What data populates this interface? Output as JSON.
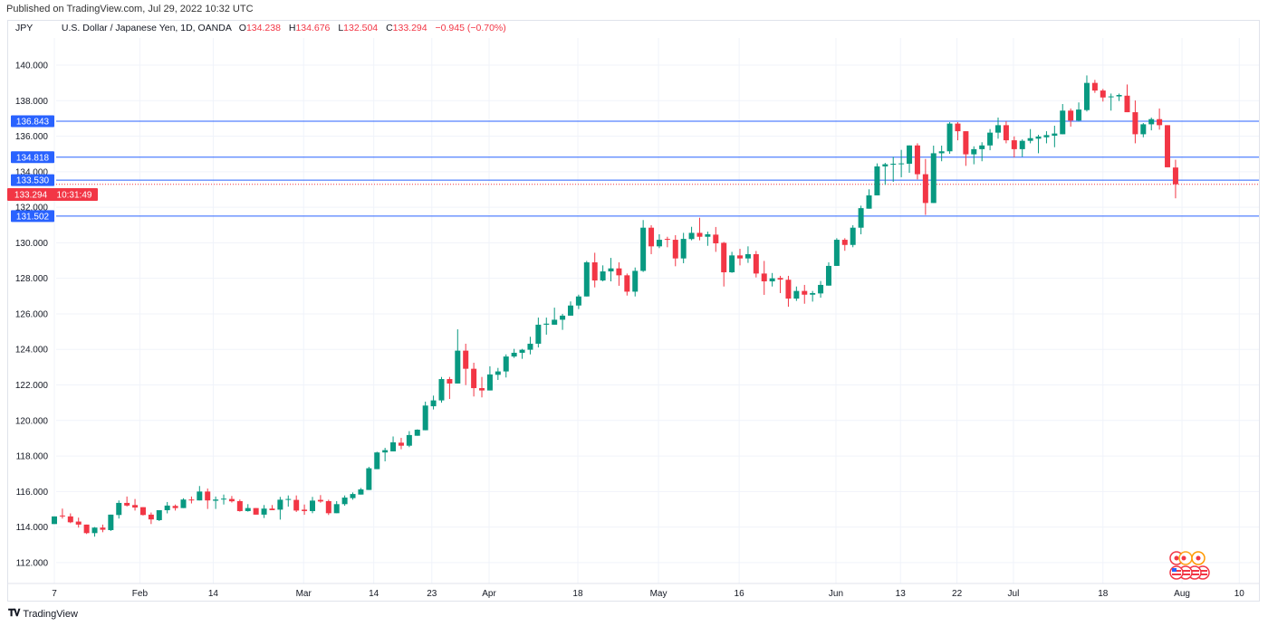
{
  "header": {
    "published": "Published on TradingView.com, Jul 29, 2022 10:32 UTC"
  },
  "legend": {
    "symbol": "JPY",
    "description": "U.S. Dollar / Japanese Yen, 1D, OANDA",
    "open_key": "O",
    "open": "134.238",
    "high_key": "H",
    "high": "134.676",
    "low_key": "L",
    "low": "132.504",
    "close_key": "C",
    "close": "133.294",
    "change": "−0.945 (−0.70%)"
  },
  "footer": {
    "brand": "TradingView",
    "logo": "17"
  },
  "colors": {
    "up": "#089981",
    "down": "#f23645",
    "line": "#2962ff",
    "grid": "#f0f3fa"
  },
  "chart_data": {
    "type": "candlestick",
    "title": "U.S. Dollar / Japanese Yen, 1D, OANDA",
    "first_date": "2022-01-17",
    "last_date": "2022-07-29",
    "ylim": [
      111,
      141
    ],
    "y_ticks": [
      "112.000",
      "114.000",
      "116.000",
      "118.000",
      "120.000",
      "122.000",
      "124.000",
      "126.000",
      "128.000",
      "130.000",
      "132.000",
      "134.000",
      "136.000",
      "138.000",
      "140.000"
    ],
    "x_ticks": [
      {
        "label": "7",
        "index": 0
      },
      {
        "label": "Feb",
        "index": 10.6
      },
      {
        "label": "14",
        "index": 19.7
      },
      {
        "label": "Mar",
        "index": 30.9
      },
      {
        "label": "14",
        "index": 39.6
      },
      {
        "label": "23",
        "index": 46.8
      },
      {
        "label": "Apr",
        "index": 53.9
      },
      {
        "label": "18",
        "index": 64.9
      },
      {
        "label": "May",
        "index": 74.9
      },
      {
        "label": "16",
        "index": 84.9
      },
      {
        "label": "Jun",
        "index": 96.9
      },
      {
        "label": "13",
        "index": 104.9
      },
      {
        "label": "22",
        "index": 111.9
      },
      {
        "label": "Jul",
        "index": 118.9
      },
      {
        "label": "18",
        "index": 130
      },
      {
        "label": "Aug",
        "index": 139.8
      },
      {
        "label": "10",
        "index": 146.9
      }
    ],
    "horizontal_lines": [
      "136.843",
      "134.818",
      "133.530",
      "131.502"
    ],
    "current_price": {
      "value": "133.294",
      "countdown": "10:31:49"
    },
    "candles": [
      [
        114.17,
        114.6,
        114.17,
        114.6
      ],
      [
        114.65,
        115.04,
        114.48,
        114.6
      ],
      [
        114.6,
        114.77,
        114.22,
        114.27
      ],
      [
        114.31,
        114.53,
        113.97,
        114.14
      ],
      [
        114.14,
        114.14,
        113.61,
        113.66
      ],
      [
        113.66,
        114.0,
        113.46,
        113.97
      ],
      [
        113.97,
        114.14,
        113.71,
        113.85
      ],
      [
        113.83,
        114.7,
        113.78,
        114.7
      ],
      [
        114.68,
        115.5,
        114.48,
        115.36
      ],
      [
        115.36,
        115.72,
        115.16,
        115.21
      ],
      [
        115.24,
        115.58,
        114.93,
        115.1
      ],
      [
        115.12,
        115.12,
        114.65,
        114.68
      ],
      [
        114.7,
        114.82,
        114.17,
        114.43
      ],
      [
        114.39,
        114.95,
        114.34,
        114.95
      ],
      [
        114.95,
        115.41,
        114.77,
        115.21
      ],
      [
        115.19,
        115.27,
        114.93,
        115.07
      ],
      [
        115.07,
        115.62,
        115.07,
        115.55
      ],
      [
        115.55,
        115.72,
        115.33,
        115.5
      ],
      [
        115.5,
        116.31,
        115.5,
        116.0
      ],
      [
        116.0,
        116.17,
        115.02,
        115.5
      ],
      [
        115.48,
        115.72,
        115.02,
        115.55
      ],
      [
        115.55,
        115.83,
        115.27,
        115.6
      ],
      [
        115.58,
        115.75,
        115.38,
        115.45
      ],
      [
        115.46,
        115.55,
        114.87,
        114.9
      ],
      [
        114.9,
        115.29,
        114.87,
        115.07
      ],
      [
        115.07,
        115.07,
        114.7,
        114.7
      ],
      [
        114.7,
        115.24,
        114.51,
        115.04
      ],
      [
        115.04,
        115.24,
        114.95,
        114.95
      ],
      [
        114.98,
        115.7,
        114.42,
        115.54
      ],
      [
        115.53,
        115.78,
        115.15,
        115.58
      ],
      [
        115.53,
        115.78,
        114.85,
        114.93
      ],
      [
        114.98,
        115.27,
        114.69,
        114.9
      ],
      [
        114.9,
        115.7,
        114.78,
        115.49
      ],
      [
        115.53,
        115.8,
        115.37,
        115.44
      ],
      [
        115.46,
        115.54,
        114.68,
        114.78
      ],
      [
        114.78,
        115.46,
        114.78,
        115.29
      ],
      [
        115.29,
        115.78,
        115.2,
        115.66
      ],
      [
        115.63,
        115.95,
        115.54,
        115.86
      ],
      [
        115.83,
        116.2,
        115.83,
        116.12
      ],
      [
        116.09,
        117.39,
        116.09,
        117.31
      ],
      [
        117.26,
        118.24,
        117.26,
        118.2
      ],
      [
        118.2,
        118.46,
        117.7,
        118.33
      ],
      [
        118.26,
        119.1,
        118.26,
        118.77
      ],
      [
        118.75,
        119.02,
        118.38,
        118.58
      ],
      [
        118.58,
        119.4,
        118.5,
        119.18
      ],
      [
        119.14,
        119.5,
        119.14,
        119.48
      ],
      [
        119.45,
        121.06,
        119.45,
        120.84
      ],
      [
        120.8,
        121.4,
        120.62,
        121.13
      ],
      [
        121.13,
        122.45,
        121.0,
        122.33
      ],
      [
        122.33,
        122.45,
        121.21,
        122.08
      ],
      [
        122.08,
        125.13,
        122.08,
        123.93
      ],
      [
        123.93,
        124.32,
        121.99,
        122.91
      ],
      [
        122.91,
        123.25,
        121.35,
        121.82
      ],
      [
        121.82,
        122.45,
        121.3,
        121.69
      ],
      [
        121.69,
        123.05,
        121.69,
        122.59
      ],
      [
        122.57,
        122.96,
        122.28,
        122.76
      ],
      [
        122.76,
        123.72,
        122.42,
        123.6
      ],
      [
        123.6,
        124.03,
        123.52,
        123.81
      ],
      [
        123.81,
        124.03,
        123.47,
        123.98
      ],
      [
        123.98,
        124.71,
        123.72,
        124.32
      ],
      [
        124.32,
        125.79,
        124.11,
        125.39
      ],
      [
        125.39,
        125.79,
        124.83,
        125.45
      ],
      [
        125.39,
        126.35,
        125.39,
        125.67
      ],
      [
        125.67,
        126.0,
        125.1,
        125.9
      ],
      [
        125.9,
        126.7,
        125.9,
        126.47
      ],
      [
        126.47,
        127.08,
        126.27,
        126.98
      ],
      [
        126.98,
        128.98,
        126.98,
        128.9
      ],
      [
        128.9,
        129.44,
        127.49,
        127.88
      ],
      [
        127.88,
        128.73,
        127.83,
        128.39
      ],
      [
        128.39,
        129.15,
        127.83,
        128.56
      ],
      [
        128.56,
        128.9,
        127.58,
        128.17
      ],
      [
        128.17,
        128.27,
        127.03,
        127.25
      ],
      [
        127.25,
        128.61,
        126.98,
        128.42
      ],
      [
        128.42,
        131.28,
        128.36,
        130.85
      ],
      [
        130.85,
        130.99,
        129.36,
        129.8
      ],
      [
        129.8,
        130.48,
        129.7,
        130.17
      ],
      [
        130.22,
        130.34,
        129.75,
        130.17
      ],
      [
        130.17,
        130.43,
        128.68,
        129.12
      ],
      [
        129.12,
        130.56,
        128.85,
        130.22
      ],
      [
        130.21,
        130.9,
        130.14,
        130.56
      ],
      [
        130.56,
        131.41,
        130.14,
        130.34
      ],
      [
        130.34,
        130.63,
        129.83,
        130.48
      ],
      [
        130.46,
        130.89,
        129.49,
        129.97
      ],
      [
        130.0,
        130.05,
        127.54,
        128.34
      ],
      [
        128.34,
        129.49,
        128.31,
        129.29
      ],
      [
        129.29,
        129.66,
        128.73,
        129.12
      ],
      [
        129.12,
        129.8,
        128.87,
        129.36
      ],
      [
        129.36,
        129.54,
        128.05,
        128.27
      ],
      [
        128.27,
        128.98,
        127.07,
        127.83
      ],
      [
        127.83,
        128.3,
        127.54,
        128.0
      ],
      [
        128.02,
        128.14,
        127.17,
        127.93
      ],
      [
        127.92,
        128.14,
        126.4,
        126.86
      ],
      [
        126.86,
        127.54,
        126.73,
        127.29
      ],
      [
        127.29,
        127.63,
        126.57,
        127.08
      ],
      [
        127.08,
        127.29,
        126.69,
        127.17
      ],
      [
        127.15,
        127.85,
        126.91,
        127.63
      ],
      [
        127.59,
        128.9,
        127.59,
        128.7
      ],
      [
        128.7,
        130.26,
        128.7,
        130.17
      ],
      [
        130.17,
        130.26,
        129.55,
        129.88
      ],
      [
        129.88,
        130.99,
        129.75,
        130.85
      ],
      [
        130.85,
        132.09,
        130.48,
        131.95
      ],
      [
        131.92,
        133.01,
        131.92,
        132.67
      ],
      [
        132.67,
        134.47,
        132.67,
        134.3
      ],
      [
        134.3,
        134.5,
        133.26,
        134.42
      ],
      [
        134.4,
        134.84,
        133.43,
        134.45
      ],
      [
        134.42,
        135.23,
        133.69,
        134.47
      ],
      [
        134.45,
        135.48,
        133.94,
        135.48
      ],
      [
        135.48,
        135.6,
        133.57,
        133.86
      ],
      [
        133.86,
        134.72,
        131.57,
        132.24
      ],
      [
        132.24,
        135.47,
        132.24,
        135.04
      ],
      [
        135.04,
        135.47,
        134.59,
        135.15
      ],
      [
        135.15,
        136.79,
        135.01,
        136.71
      ],
      [
        136.71,
        136.79,
        135.77,
        136.28
      ],
      [
        136.28,
        136.28,
        134.33,
        134.98
      ],
      [
        134.98,
        135.43,
        134.42,
        135.27
      ],
      [
        135.27,
        135.66,
        134.59,
        135.48
      ],
      [
        135.48,
        136.4,
        135.21,
        136.2
      ],
      [
        136.2,
        137.05,
        135.86,
        136.62
      ],
      [
        136.62,
        136.84,
        135.6,
        135.77
      ],
      [
        135.77,
        135.99,
        134.81,
        135.27
      ],
      [
        135.27,
        135.82,
        134.84,
        135.74
      ],
      [
        135.74,
        136.4,
        135.6,
        135.89
      ],
      [
        135.86,
        136.08,
        135.04,
        135.98
      ],
      [
        135.94,
        136.28,
        135.6,
        136.06
      ],
      [
        136.03,
        136.59,
        135.38,
        136.15
      ],
      [
        136.11,
        137.81,
        136.11,
        137.44
      ],
      [
        137.44,
        137.56,
        136.54,
        136.88
      ],
      [
        136.88,
        137.9,
        136.83,
        137.5
      ],
      [
        137.47,
        139.42,
        137.39,
        139.0
      ],
      [
        139.0,
        139.17,
        138.44,
        138.57
      ],
      [
        138.57,
        138.66,
        137.95,
        138.18
      ],
      [
        138.2,
        138.4,
        137.44,
        138.24
      ],
      [
        138.24,
        138.4,
        137.98,
        138.32
      ],
      [
        138.28,
        138.91,
        137.35,
        137.35
      ],
      [
        137.35,
        138.01,
        135.6,
        136.11
      ],
      [
        136.11,
        136.74,
        135.94,
        136.67
      ],
      [
        136.67,
        137.05,
        136.33,
        136.96
      ],
      [
        136.96,
        137.56,
        136.37,
        136.62
      ],
      [
        136.62,
        136.62,
        134.25,
        134.25
      ],
      [
        134.238,
        134.676,
        132.504,
        133.294
      ]
    ]
  }
}
